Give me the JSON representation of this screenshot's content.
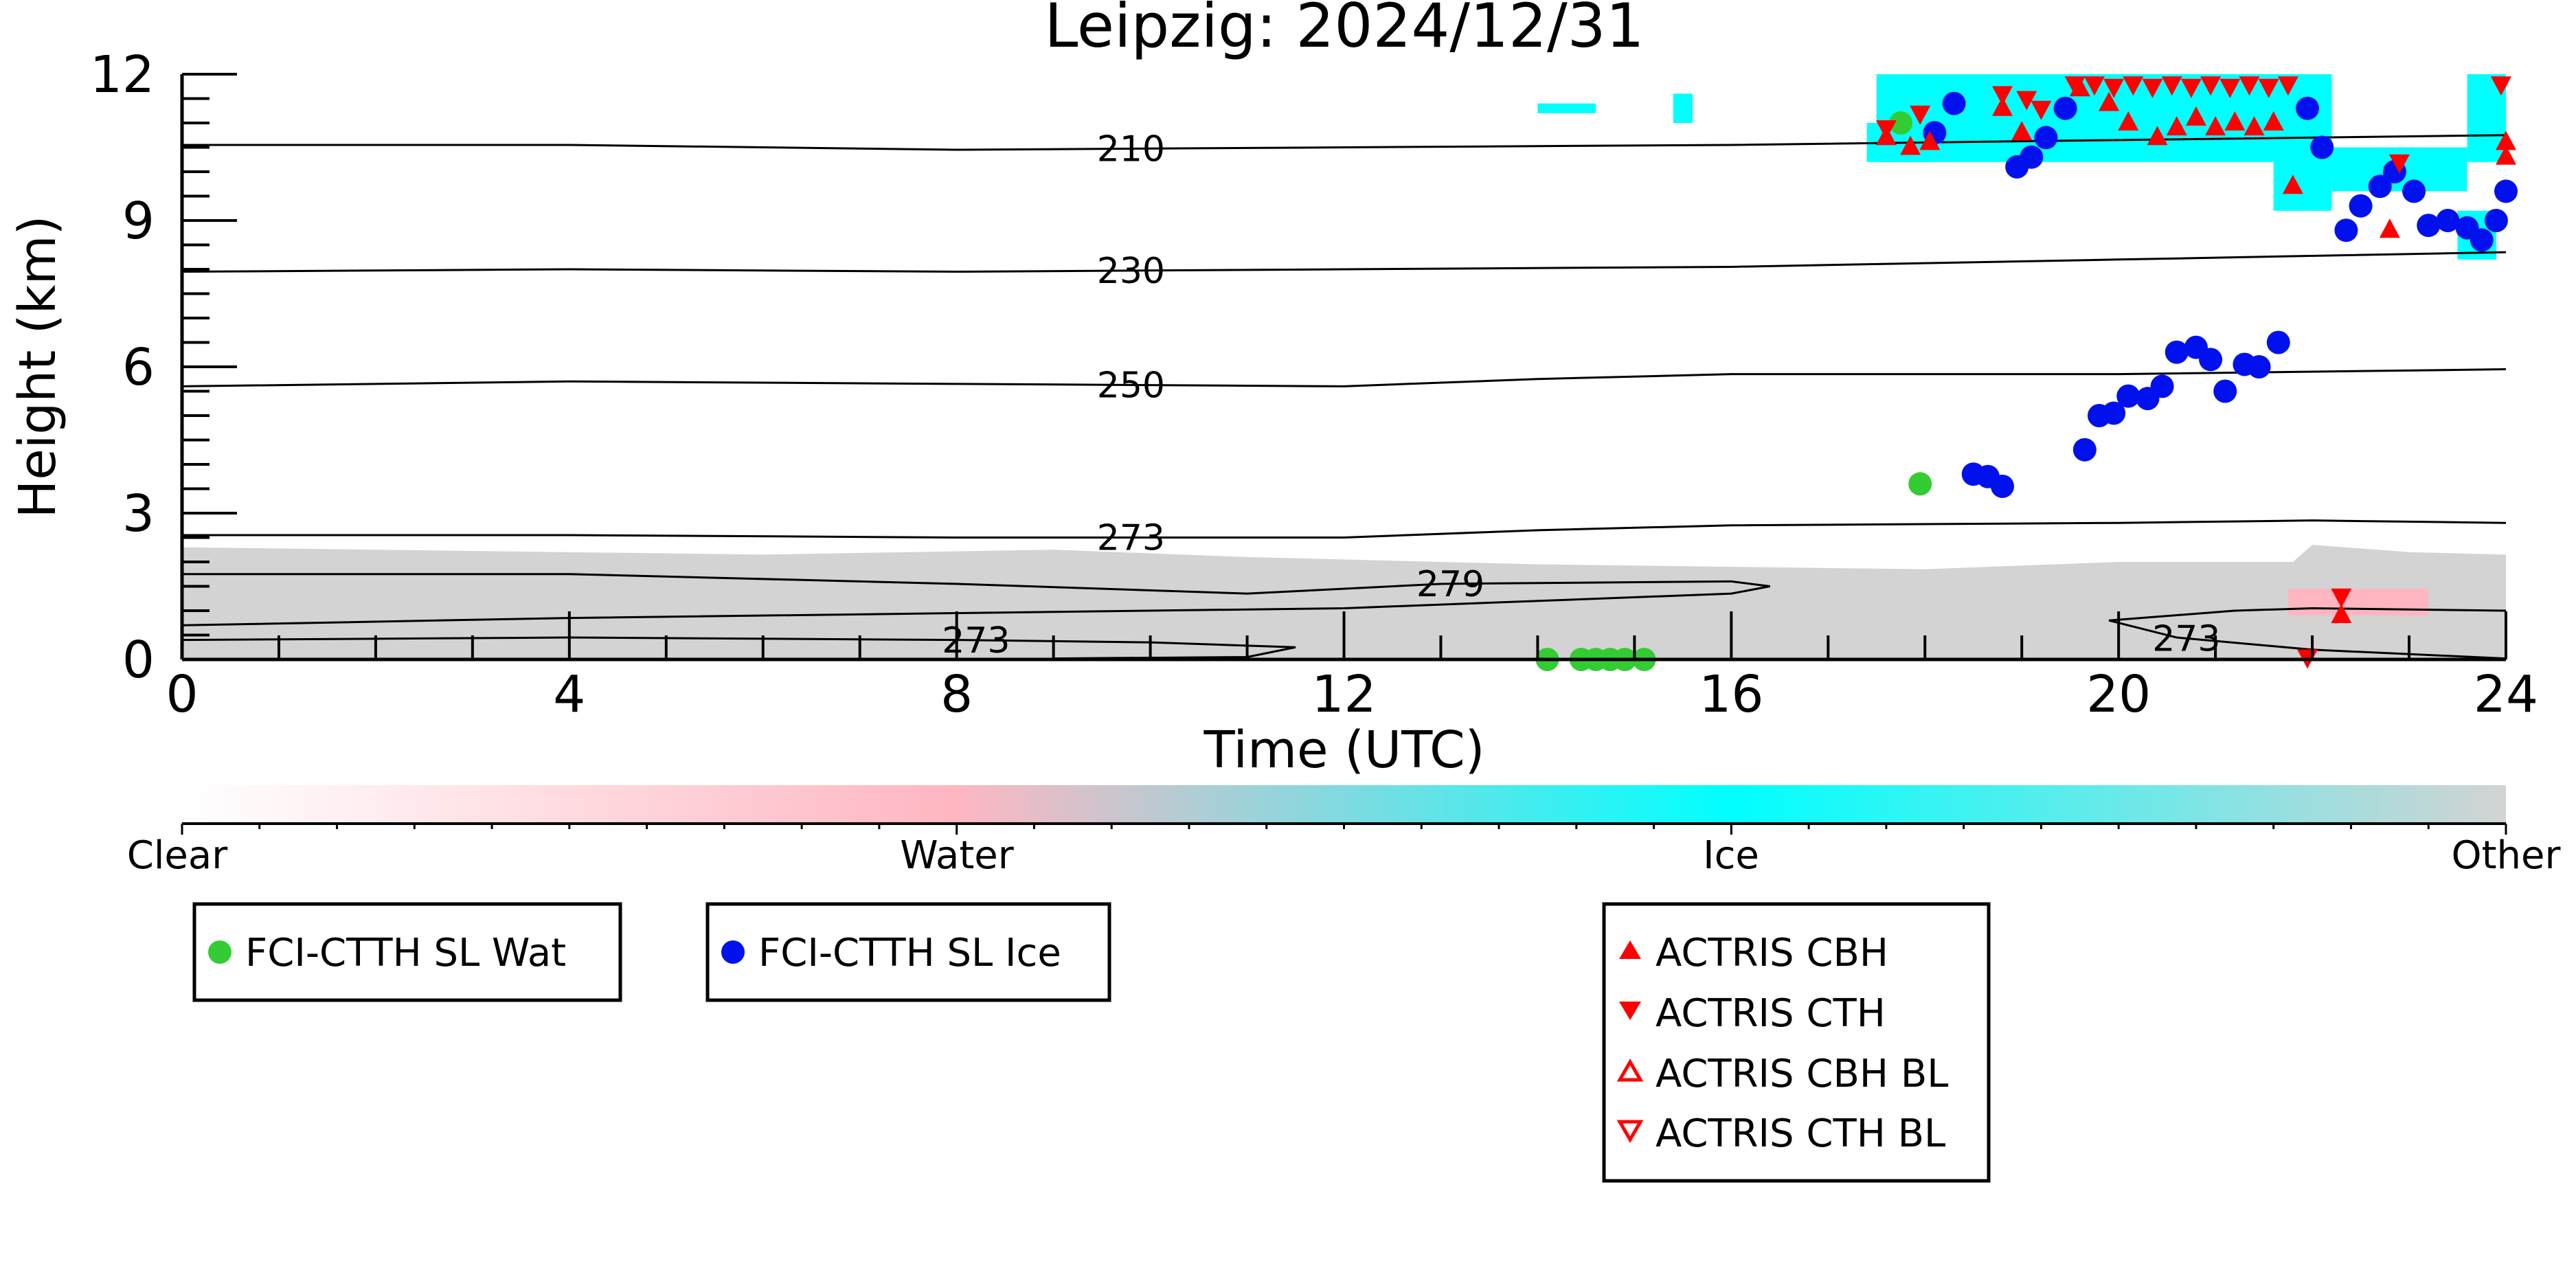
{
  "chart_data": {
    "type": "scatter",
    "title": "Leipzig: 2024/12/31",
    "xlabel": "Time (UTC)",
    "ylabel": "Height (km)",
    "xlim": [
      0,
      24
    ],
    "ylim": [
      0,
      12
    ],
    "x_ticks": [
      0,
      4,
      8,
      12,
      16,
      20,
      24
    ],
    "y_ticks": [
      0,
      3,
      6,
      9,
      12
    ],
    "grid": false,
    "colors": {
      "clear": "#ffffff",
      "water": "#ffb6c1",
      "ice": "#00ffff",
      "other": "#d3d3d3",
      "fci_wat": "#33cc33",
      "fci_ice": "#0011ee",
      "actris": "#ff0000"
    },
    "colorbar": {
      "labels": [
        "Clear",
        "Water",
        "Ice",
        "Other"
      ],
      "positions": [
        0,
        0.333,
        0.667,
        1
      ]
    },
    "contours": [
      {
        "label": "210",
        "label_x": 9.8,
        "points": [
          [
            0,
            10.55
          ],
          [
            4,
            10.55
          ],
          [
            8,
            10.45
          ],
          [
            12,
            10.5
          ],
          [
            16,
            10.55
          ],
          [
            20,
            10.65
          ],
          [
            24,
            10.75
          ]
        ]
      },
      {
        "label": "230",
        "label_x": 9.8,
        "points": [
          [
            0,
            7.95
          ],
          [
            4,
            8.0
          ],
          [
            8,
            7.95
          ],
          [
            12,
            8.0
          ],
          [
            16,
            8.05
          ],
          [
            20,
            8.2
          ],
          [
            24,
            8.35
          ]
        ]
      },
      {
        "label": "250",
        "label_x": 9.8,
        "points": [
          [
            0,
            5.6
          ],
          [
            4,
            5.7
          ],
          [
            8,
            5.65
          ],
          [
            12,
            5.6
          ],
          [
            14,
            5.75
          ],
          [
            16,
            5.85
          ],
          [
            20,
            5.85
          ],
          [
            24,
            5.95
          ]
        ]
      },
      {
        "label": "273",
        "label_x": 9.8,
        "points": [
          [
            0,
            2.55
          ],
          [
            4,
            2.55
          ],
          [
            8,
            2.5
          ],
          [
            12,
            2.5
          ],
          [
            14,
            2.65
          ],
          [
            16,
            2.75
          ],
          [
            20,
            2.8
          ],
          [
            22,
            2.85
          ],
          [
            24,
            2.8
          ]
        ]
      },
      {
        "label": "279",
        "label_x": 13.1,
        "points": [
          [
            0,
            1.75
          ],
          [
            4,
            1.75
          ],
          [
            8,
            1.55
          ],
          [
            11,
            1.35
          ],
          [
            13,
            1.55
          ],
          [
            16,
            1.6
          ],
          [
            16.4,
            1.5
          ],
          [
            16,
            1.35
          ],
          [
            12,
            1.05
          ],
          [
            8,
            0.95
          ],
          [
            4,
            0.85
          ],
          [
            0,
            0.7
          ]
        ]
      },
      {
        "label": "273",
        "label_x": 8.2,
        "points": [
          [
            0,
            0.4
          ],
          [
            4,
            0.45
          ],
          [
            8,
            0.4
          ],
          [
            10,
            0.35
          ],
          [
            11.5,
            0.25
          ],
          [
            11,
            0.05
          ],
          [
            9,
            0.02
          ]
        ]
      },
      {
        "label": "273",
        "label_x": 20.7,
        "points": [
          [
            24,
            0.02
          ],
          [
            22,
            0.2
          ],
          [
            20.6,
            0.45
          ],
          [
            19.9,
            0.8
          ],
          [
            21.2,
            1.0
          ],
          [
            22,
            1.05
          ],
          [
            24,
            1.0
          ]
        ]
      }
    ],
    "series": [
      {
        "name": "FCI-CTTH SL Wat",
        "marker": "circle",
        "color": "#33cc33",
        "points": [
          [
            17.75,
            11.0
          ],
          [
            17.95,
            3.6
          ],
          [
            14.1,
            0.0
          ],
          [
            14.45,
            0.0
          ],
          [
            14.6,
            0.0
          ],
          [
            14.75,
            0.0
          ],
          [
            14.9,
            0.0
          ],
          [
            15.1,
            0.0
          ]
        ]
      },
      {
        "name": "FCI-CTTH SL Ice",
        "marker": "circle",
        "color": "#0011ee",
        "points": [
          [
            18.1,
            10.8
          ],
          [
            18.3,
            11.4
          ],
          [
            18.5,
            3.8
          ],
          [
            18.65,
            3.75
          ],
          [
            18.8,
            3.55
          ],
          [
            18.95,
            10.1
          ],
          [
            19.1,
            10.3
          ],
          [
            19.25,
            10.7
          ],
          [
            19.45,
            11.3
          ],
          [
            19.65,
            4.3
          ],
          [
            19.8,
            5.0
          ],
          [
            19.95,
            5.05
          ],
          [
            20.1,
            5.4
          ],
          [
            20.3,
            5.35
          ],
          [
            20.45,
            5.6
          ],
          [
            20.6,
            6.3
          ],
          [
            20.8,
            6.4
          ],
          [
            20.95,
            6.15
          ],
          [
            21.1,
            5.5
          ],
          [
            21.3,
            6.05
          ],
          [
            21.45,
            6.0
          ],
          [
            21.65,
            6.5
          ],
          [
            21.95,
            11.3
          ],
          [
            22.1,
            10.5
          ],
          [
            22.35,
            8.8
          ],
          [
            22.5,
            9.3
          ],
          [
            22.7,
            9.7
          ],
          [
            22.85,
            10.0
          ],
          [
            23.05,
            9.6
          ],
          [
            23.2,
            8.9
          ],
          [
            23.4,
            9.0
          ],
          [
            23.6,
            8.85
          ],
          [
            23.75,
            8.6
          ],
          [
            23.9,
            9.0
          ],
          [
            24.0,
            9.6
          ]
        ]
      },
      {
        "name": "ACTRIS CBH",
        "marker": "triangle-up",
        "color": "#ff0000",
        "points": [
          [
            17.6,
            10.7
          ],
          [
            17.85,
            10.5
          ],
          [
            18.05,
            10.6
          ],
          [
            18.8,
            11.3
          ],
          [
            19.0,
            10.8
          ],
          [
            19.6,
            11.7
          ],
          [
            19.9,
            11.4
          ],
          [
            20.1,
            11.0
          ],
          [
            20.4,
            10.7
          ],
          [
            20.6,
            10.9
          ],
          [
            20.8,
            11.1
          ],
          [
            21.0,
            10.9
          ],
          [
            21.2,
            11.0
          ],
          [
            21.4,
            10.9
          ],
          [
            21.6,
            11.0
          ],
          [
            21.8,
            9.7
          ],
          [
            22.3,
            0.9
          ],
          [
            22.8,
            8.8
          ],
          [
            24.0,
            10.6
          ],
          [
            24.0,
            10.3
          ]
        ]
      },
      {
        "name": "ACTRIS CTH",
        "marker": "triangle-down",
        "color": "#ff0000",
        "points": [
          [
            17.6,
            10.9
          ],
          [
            17.95,
            11.2
          ],
          [
            18.8,
            11.6
          ],
          [
            19.05,
            11.5
          ],
          [
            19.2,
            11.3
          ],
          [
            19.55,
            11.8
          ],
          [
            19.75,
            11.8
          ],
          [
            19.95,
            11.75
          ],
          [
            20.15,
            11.8
          ],
          [
            20.35,
            11.75
          ],
          [
            20.55,
            11.8
          ],
          [
            20.75,
            11.75
          ],
          [
            20.95,
            11.8
          ],
          [
            21.15,
            11.75
          ],
          [
            21.35,
            11.8
          ],
          [
            21.55,
            11.75
          ],
          [
            21.75,
            11.8
          ],
          [
            22.3,
            1.3
          ],
          [
            22.9,
            10.2
          ],
          [
            23.95,
            11.8
          ],
          [
            21.95,
            0.05
          ]
        ]
      },
      {
        "name": "ACTRIS CBH BL",
        "marker": "triangle-up-open",
        "color": "#ff0000",
        "points": []
      },
      {
        "name": "ACTRIS CTH BL",
        "marker": "triangle-down-open",
        "color": "#ff0000",
        "points": []
      }
    ]
  },
  "legends": {
    "fci_wat": "FCI-CTTH SL Wat",
    "fci_ice": "FCI-CTTH SL Ice",
    "actris_cbh": "ACTRIS CBH",
    "actris_cth": "ACTRIS CTH",
    "actris_cbh_bl": "ACTRIS CBH BL",
    "actris_cth_bl": "ACTRIS CTH BL"
  }
}
